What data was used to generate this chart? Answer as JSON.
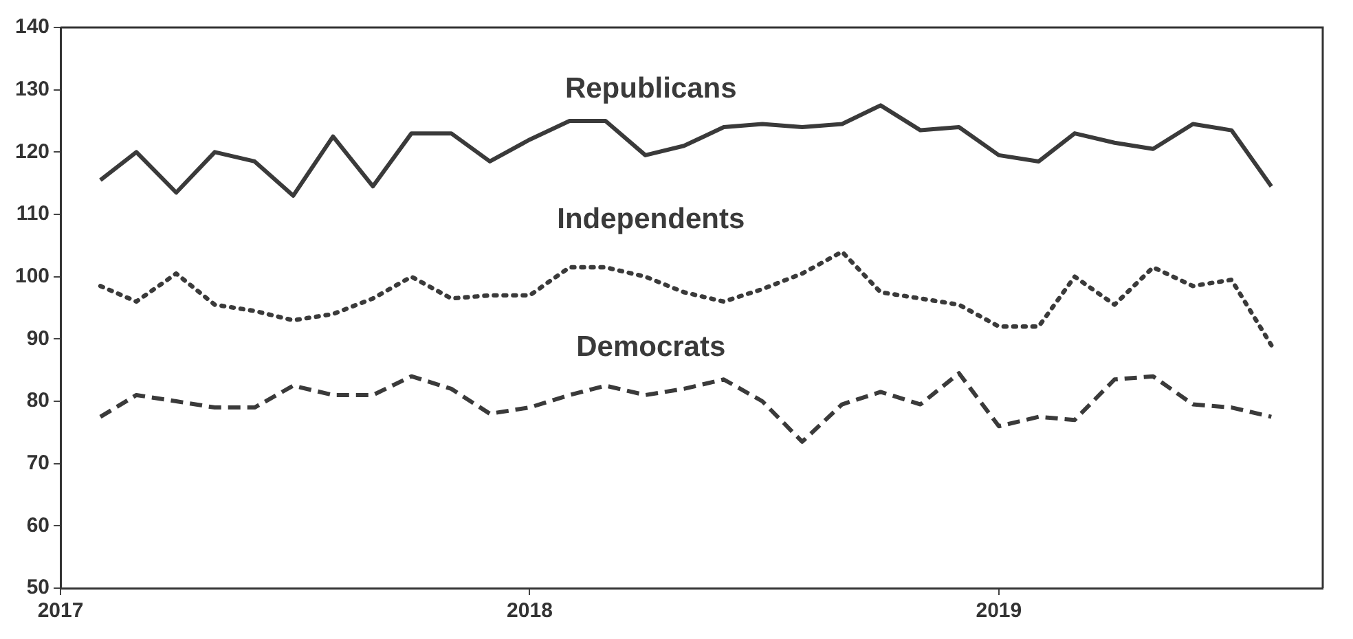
{
  "chart_data": {
    "type": "line",
    "x": [
      "2017-02",
      "2017-03",
      "2017-04",
      "2017-05",
      "2017-06",
      "2017-07",
      "2017-08",
      "2017-09",
      "2017-10",
      "2017-11",
      "2017-12",
      "2018-01",
      "2018-02",
      "2018-03",
      "2018-04",
      "2018-05",
      "2018-06",
      "2018-07",
      "2018-08",
      "2018-09",
      "2018-10",
      "2018-11",
      "2018-12",
      "2019-01",
      "2019-02",
      "2019-03",
      "2019-04",
      "2019-05",
      "2019-06",
      "2019-07",
      "2019-08"
    ],
    "series": [
      {
        "name": "Republicans",
        "color": "#3a3a3a",
        "line_style": "solid",
        "values": [
          115.5,
          120,
          113.5,
          120,
          118.5,
          113,
          122.5,
          114.5,
          123,
          123,
          118.5,
          122,
          125,
          125,
          119.5,
          121,
          124,
          124.5,
          124,
          124.5,
          127.5,
          123.5,
          124,
          119.5,
          118.5,
          123,
          121.5,
          120.5,
          124.5,
          123.5,
          114.5
        ]
      },
      {
        "name": "Independents",
        "color": "#3a3a3a",
        "line_style": "dotted",
        "values": [
          98.5,
          96,
          100.5,
          95.5,
          94.5,
          93,
          94,
          96.5,
          100,
          96.5,
          97,
          97,
          101.5,
          101.5,
          100,
          97.5,
          96,
          98,
          100.5,
          104,
          97.5,
          96.5,
          95.5,
          92,
          92,
          100,
          95.5,
          101.5,
          98.5,
          99.5,
          89
        ]
      },
      {
        "name": "Democrats",
        "color": "#3a3a3a",
        "line_style": "dashed",
        "values": [
          77.5,
          81,
          80,
          79,
          79,
          82.5,
          81,
          81,
          84,
          82,
          78,
          79,
          81,
          82.5,
          81,
          82,
          83.5,
          80,
          73.5,
          79.5,
          81.5,
          79.5,
          84.5,
          76,
          77.5,
          77,
          83.5,
          84,
          79.5,
          79,
          77.5
        ]
      }
    ],
    "xlim": [
      "2017-01",
      "2019-09-10"
    ],
    "xticks": [
      {
        "value": "2017",
        "label": "2017"
      },
      {
        "value": "2018",
        "label": "2018"
      },
      {
        "value": "2019",
        "label": "2019"
      }
    ],
    "ylim": [
      50,
      140
    ],
    "yticks": [
      50,
      60,
      70,
      80,
      90,
      100,
      110,
      120,
      130,
      140
    ],
    "grid": false,
    "legend": false,
    "marker": "none"
  }
}
